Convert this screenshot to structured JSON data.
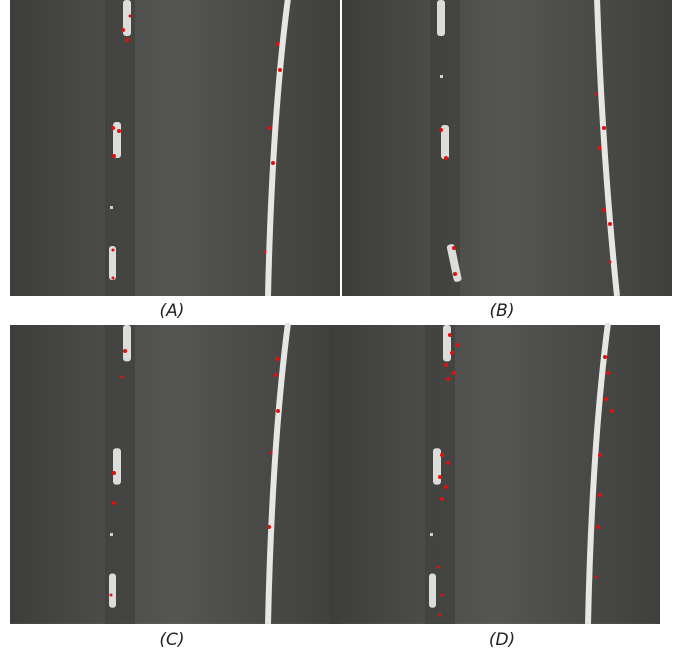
{
  "captions": [
    "(A)",
    "(B)",
    "(C)",
    "(D)"
  ]
}
